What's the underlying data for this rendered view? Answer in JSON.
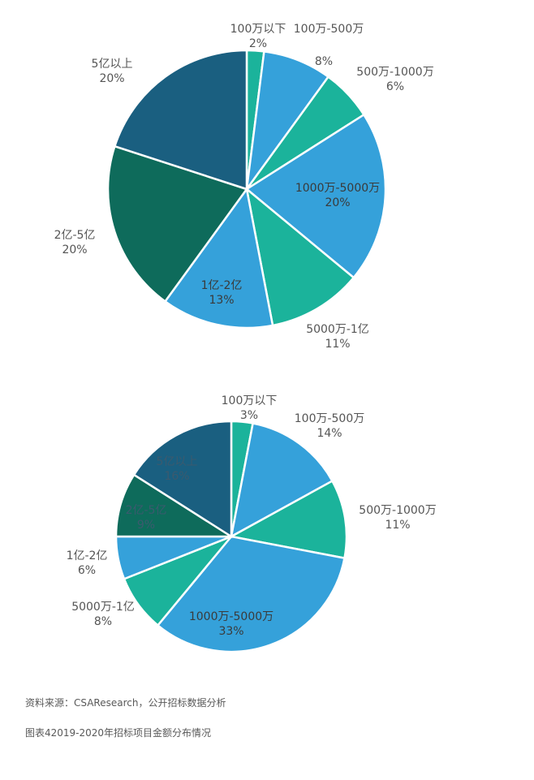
{
  "colors": {
    "teal": "#1bb39b",
    "blue": "#35a1da",
    "navy": "#1a5f80",
    "darkgreen": "#0e6b5b",
    "label": "#555555"
  },
  "chart_data": [
    {
      "type": "pie",
      "title": "",
      "slices": [
        {
          "label": "100万以下",
          "value": 2,
          "pct_text": "2%",
          "color": "#1bb39b"
        },
        {
          "label": "100万-500万",
          "value": 8,
          "pct_text": "8%",
          "color": "#35a1da"
        },
        {
          "label": "500万-1000万",
          "value": 6,
          "pct_text": "6%",
          "color": "#1bb39b"
        },
        {
          "label": "1000万-5000万",
          "value": 20,
          "pct_text": "20%",
          "color": "#35a1da"
        },
        {
          "label": "5000万-1亿",
          "value": 11,
          "pct_text": "11%",
          "color": "#1bb39b"
        },
        {
          "label": "1亿-2亿",
          "value": 13,
          "pct_text": "13%",
          "color": "#35a1da"
        },
        {
          "label": "2亿-5亿",
          "value": 20,
          "pct_text": "20%",
          "color": "#0e6b5b"
        },
        {
          "label": "5亿以上",
          "value": 20,
          "pct_text": "20%",
          "color": "#1a5f80"
        }
      ]
    },
    {
      "type": "pie",
      "title": "",
      "slices": [
        {
          "label": "100万以下",
          "value": 3,
          "pct_text": "3%",
          "color": "#1bb39b"
        },
        {
          "label": "100万-500万",
          "value": 14,
          "pct_text": "14%",
          "color": "#35a1da"
        },
        {
          "label": "500万-1000万",
          "value": 11,
          "pct_text": "11%",
          "color": "#1bb39b"
        },
        {
          "label": "1000万-5000万",
          "value": 33,
          "pct_text": "33%",
          "color": "#35a1da"
        },
        {
          "label": "5000万-1亿",
          "value": 8,
          "pct_text": "8%",
          "color": "#1bb39b"
        },
        {
          "label": "1亿-2亿",
          "value": 6,
          "pct_text": "6%",
          "color": "#35a1da"
        },
        {
          "label": "2亿-5亿",
          "value": 9,
          "pct_text": "9%",
          "color": "#0e6b5b"
        },
        {
          "label": "5亿以上",
          "value": 16,
          "pct_text": "16%",
          "color": "#1a5f80"
        }
      ]
    }
  ],
  "source_text": "资料来源：CSAResearch，公开招标数据分析",
  "figure_caption": "图表42019-2020年招标项目金额分布情况"
}
